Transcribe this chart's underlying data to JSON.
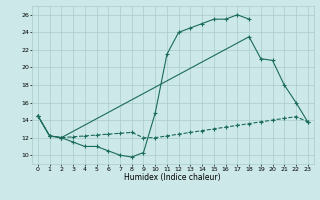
{
  "xlabel": "Humidex (Indice chaleur)",
  "bg_color": "#cce8e8",
  "grid_color": "#aacccc",
  "line_color": "#1a6b5a",
  "line1_x": [
    0,
    1,
    2,
    3,
    4,
    5,
    6,
    7,
    8,
    9,
    10,
    11,
    12,
    13,
    14,
    15,
    16,
    17,
    18
  ],
  "line1_y": [
    14.5,
    12.2,
    12.0,
    11.5,
    11.0,
    11.0,
    10.5,
    10.0,
    9.8,
    10.3,
    14.8,
    21.5,
    24.0,
    24.5,
    25.0,
    25.5,
    25.5,
    26.0,
    25.5
  ],
  "line2_x": [
    0,
    1,
    2,
    18,
    19,
    20,
    21,
    22,
    23
  ],
  "line2_y": [
    14.5,
    12.2,
    12.0,
    23.5,
    21.0,
    20.8,
    18.0,
    16.0,
    13.8
  ],
  "line3_x": [
    0,
    1,
    2,
    3,
    4,
    5,
    6,
    7,
    8,
    9,
    10,
    11,
    12,
    13,
    14,
    15,
    16,
    17,
    18,
    19,
    20,
    21,
    22,
    23
  ],
  "line3_y": [
    14.5,
    12.2,
    12.0,
    12.1,
    12.2,
    12.3,
    12.4,
    12.5,
    12.6,
    12.0,
    12.0,
    12.2,
    12.4,
    12.6,
    12.8,
    13.0,
    13.2,
    13.4,
    13.6,
    13.8,
    14.0,
    14.2,
    14.4,
    13.8
  ],
  "xlim": [
    -0.5,
    23.5
  ],
  "ylim": [
    9,
    27
  ],
  "yticks": [
    10,
    12,
    14,
    16,
    18,
    20,
    22,
    24,
    26
  ],
  "xticks": [
    0,
    1,
    2,
    3,
    4,
    5,
    6,
    7,
    8,
    9,
    10,
    11,
    12,
    13,
    14,
    15,
    16,
    17,
    18,
    19,
    20,
    21,
    22,
    23
  ]
}
